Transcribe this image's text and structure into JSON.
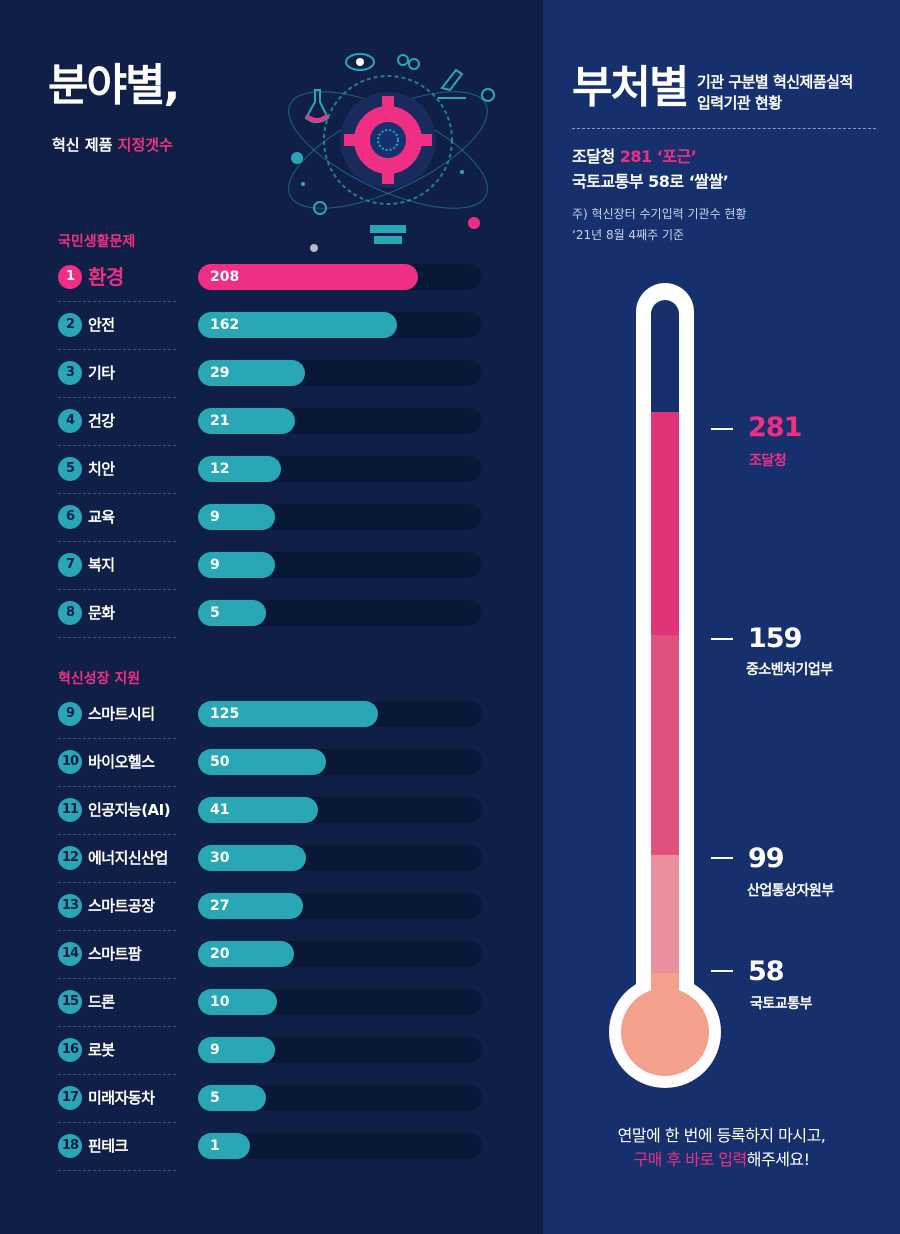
{
  "left": {
    "title": "분야별,",
    "subtitle_prefix": "혁신 제품 ",
    "subtitle_highlight": "지정갯수",
    "section1": "국민생활문제",
    "section2": "혁신성장 지원"
  },
  "right": {
    "title": "부처별",
    "title_side_1": "기관 구분별 혁신제품실적",
    "title_side_2": "입력기관 현황",
    "line1_prefix": "조달청 ",
    "line1_highlight": "281 ‘포근’",
    "line2": "국토교통부 58로 ‘쌀쌀’",
    "note1": "주) 혁신장터 수기입력 기관수 현황",
    "note2": "‘21년 8월 4째주 기준",
    "footer1": "연말에 한 번에 등록하지 마시고,",
    "footer2_highlight": "구매 후 바로 입력",
    "footer2_rest": "해주세요!"
  },
  "colors": {
    "pink": "#ee2f83",
    "teal": "#2aa7b4",
    "navy": "#0f1f47",
    "blue": "#16306e"
  },
  "chart_data": [
    {
      "type": "bar",
      "orientation": "horizontal",
      "title": "분야별, 혁신 제품 지정갯수",
      "groups": [
        {
          "name": "국민생활문제",
          "items": [
            {
              "rank": "1",
              "category": "환경",
              "value": 208
            },
            {
              "rank": "2",
              "category": "안전",
              "value": 162
            },
            {
              "rank": "3",
              "category": "기타",
              "value": 29
            },
            {
              "rank": "4",
              "category": "건강",
              "value": 21
            },
            {
              "rank": "5",
              "category": "치안",
              "value": 12
            },
            {
              "rank": "6",
              "category": "교육",
              "value": 9
            },
            {
              "rank": "7",
              "category": "복지",
              "value": 9
            },
            {
              "rank": "8",
              "category": "문화",
              "value": 5
            }
          ]
        },
        {
          "name": "혁신성장 지원",
          "items": [
            {
              "rank": "9",
              "category": "스마트시티",
              "value": 125
            },
            {
              "rank": "10",
              "category": "바이오헬스",
              "value": 50
            },
            {
              "rank": "11",
              "category": "인공지능(AI)",
              "value": 41
            },
            {
              "rank": "12",
              "category": "에너지신산업",
              "value": 30
            },
            {
              "rank": "13",
              "category": "스마트공장",
              "value": 27
            },
            {
              "rank": "14",
              "category": "스마트팜",
              "value": 20
            },
            {
              "rank": "15",
              "category": "드론",
              "value": 10
            },
            {
              "rank": "16",
              "category": "로봇",
              "value": 9
            },
            {
              "rank": "17",
              "category": "미래자동차",
              "value": 5
            },
            {
              "rank": "18",
              "category": "핀테크",
              "value": 1
            }
          ]
        }
      ]
    },
    {
      "type": "bar",
      "style": "thermometer",
      "title": "부처별",
      "categories": [
        "조달청",
        "중소벤처기업부",
        "산업통상자원부",
        "국토교통부"
      ],
      "values": [
        281,
        159,
        99,
        58
      ]
    }
  ]
}
